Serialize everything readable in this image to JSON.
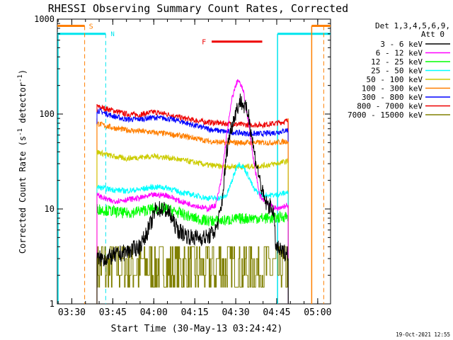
{
  "chart_data": {
    "type": "line",
    "title": "RHESSI Observing Summary Count Rates, Corrected",
    "xlabel": "Start Time (30-May-13 03:24:42)",
    "ylabel_main": "Corrected Count Rate (s",
    "ylabel_sup1": "-1",
    "ylabel_mid": " detector",
    "ylabel_sup2": "-1",
    "ylabel_end": ")",
    "y_scale": "log",
    "ylim": [
      1,
      1000
    ],
    "xlim_minutes_after_0324_42": [
      0,
      100
    ],
    "y_ticks": [
      "1",
      "10",
      "100",
      "1000"
    ],
    "x_ticks": [
      {
        "label": "03:30",
        "t": 5.3
      },
      {
        "label": "03:45",
        "t": 20.3
      },
      {
        "label": "04:00",
        "t": 35.3
      },
      {
        "label": "04:15",
        "t": 50.3
      },
      {
        "label": "04:30",
        "t": 65.3
      },
      {
        "label": "04:45",
        "t": 80.3
      },
      {
        "label": "05:00",
        "t": 95.3
      }
    ],
    "grid": false,
    "legend_position": "right",
    "legend_title_1": "Det 1,3,4,5,6,9,",
    "legend_title_2": "Att 0",
    "observing_window": [
      14.5,
      84.5
    ],
    "night_flags": {
      "color": "#00e5ee",
      "marks": [
        {
          "t": 0.0,
          "side": "end"
        },
        {
          "t": 80.6,
          "side": "start"
        }
      ],
      "day_start": 17.7,
      "night_start": 80.6,
      "level": 700
    },
    "saa_flags": {
      "color": "#ff7f00",
      "t_end": 10.0,
      "t_start": 93.1,
      "level": 850
    },
    "flare_flag": {
      "label": "F",
      "color": "#ee0000",
      "t_start": 56.5,
      "t_end": 75.0,
      "level": 580
    },
    "flag_labels": {
      "S": "S",
      "N": "N"
    },
    "series": [
      {
        "name": "3 - 6 keV",
        "color": "#000000",
        "t": [
          14.5,
          17.5,
          25,
          30,
          32,
          35,
          36,
          39,
          41,
          44,
          49,
          52,
          55,
          58,
          60,
          62,
          63,
          65,
          67,
          70,
          72,
          75,
          76,
          77,
          79,
          80,
          82,
          84.5
        ],
        "values": [
          3,
          3,
          3.5,
          4,
          5,
          8,
          10,
          10,
          9,
          6,
          5,
          5,
          5,
          6,
          10,
          40,
          60,
          100,
          140,
          100,
          40,
          15,
          12,
          11,
          10,
          4,
          3.5,
          3.5
        ]
      },
      {
        "name": "6 - 12 keV",
        "color": "#ff00ff",
        "t": [
          14.5,
          20,
          25,
          30,
          35,
          40,
          45,
          50,
          55,
          58,
          60,
          62,
          64,
          66,
          68,
          70,
          72,
          74,
          76,
          78,
          80,
          84.5
        ],
        "values": [
          14,
          12,
          12.5,
          13,
          14,
          14,
          12,
          11,
          10,
          11,
          20,
          60,
          150,
          230,
          180,
          80,
          30,
          14,
          12,
          11,
          10,
          11
        ]
      },
      {
        "name": "12 - 25 keV",
        "color": "#00ff00",
        "t": [
          14.5,
          20,
          25,
          30,
          35,
          40,
          45,
          50,
          55,
          60,
          65,
          70,
          75,
          80,
          84.5
        ],
        "values": [
          10,
          9.5,
          9,
          9.5,
          10,
          10,
          9,
          8,
          7.5,
          7.5,
          7.8,
          8,
          8,
          8,
          8.5
        ]
      },
      {
        "name": "25 - 50 keV",
        "color": "#00ffff",
        "t": [
          14.5,
          20,
          25,
          30,
          35,
          38,
          41,
          45,
          50,
          55,
          60,
          62,
          64,
          66,
          68,
          70,
          72,
          75,
          80,
          84.5
        ],
        "values": [
          17,
          16,
          15.5,
          16,
          17,
          17,
          16.5,
          15,
          14,
          13,
          13,
          14,
          20,
          30,
          28,
          22,
          16,
          14,
          14,
          15
        ]
      },
      {
        "name": "50 - 100 keV",
        "color": "#cccc00",
        "t": [
          14.5,
          20,
          25,
          30,
          35,
          40,
          45,
          50,
          55,
          60,
          65,
          70,
          75,
          80,
          84.5
        ],
        "values": [
          40,
          36,
          34,
          35,
          36,
          35,
          33,
          31,
          29,
          28,
          28,
          28,
          28.5,
          30,
          32
        ]
      },
      {
        "name": "100 - 300 keV",
        "color": "#ff7f00",
        "t": [
          14.5,
          20,
          25,
          30,
          35,
          40,
          45,
          50,
          55,
          60,
          65,
          70,
          75,
          80,
          84.5
        ],
        "values": [
          80,
          72,
          68,
          66,
          64,
          62,
          59,
          56,
          52,
          50,
          50,
          50,
          50,
          50,
          52
        ]
      },
      {
        "name": "300 - 800 keV",
        "color": "#0000ff",
        "t": [
          14.5,
          20,
          25,
          30,
          35,
          40,
          45,
          50,
          55,
          60,
          65,
          70,
          75,
          80,
          84.5
        ],
        "values": [
          110,
          96,
          88,
          88,
          92,
          90,
          84,
          76,
          70,
          66,
          64,
          62,
          62,
          64,
          68
        ]
      },
      {
        "name": "800 - 7000 keV",
        "color": "#ee0000",
        "t": [
          14.5,
          20,
          25,
          30,
          35,
          40,
          45,
          50,
          55,
          60,
          65,
          70,
          75,
          80,
          84.5
        ],
        "values": [
          120,
          110,
          100,
          98,
          105,
          100,
          92,
          86,
          82,
          80,
          78,
          77,
          77,
          80,
          85
        ]
      },
      {
        "name": "7000 - 15000 keV",
        "color": "#808000",
        "t": [
          14.5,
          84.5
        ],
        "values": [
          2,
          2
        ]
      }
    ]
  },
  "footer": {
    "date": "19-Oct-2021 12:55"
  }
}
